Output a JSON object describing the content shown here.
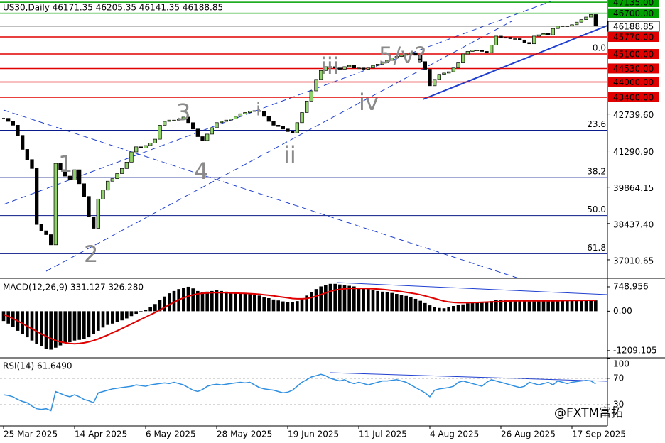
{
  "watermark": "@FXTM富拓",
  "chart_data": [
    {
      "type": "candlestick",
      "title": "US30,Daily  46171.35 46205.35 46141.35 46188.85",
      "close": [
        42570,
        42450,
        42300,
        41900,
        41350,
        40950,
        40600,
        38400,
        38150,
        38000,
        37600,
        40800,
        40550,
        40300,
        40150,
        40550,
        40000,
        39500,
        38700,
        38250,
        39400,
        39750,
        40100,
        40200,
        40400,
        40600,
        40850,
        41250,
        41450,
        41400,
        41500,
        41600,
        41750,
        42300,
        42450,
        42500,
        42500,
        42550,
        42620,
        42400,
        42150,
        41850,
        41700,
        41950,
        42200,
        42400,
        42450,
        42500,
        42550,
        42650,
        42750,
        42800,
        42850,
        42870,
        42850,
        42650,
        42450,
        42300,
        42250,
        42150,
        42050,
        42000,
        42400,
        42800,
        43250,
        43650,
        44100,
        44450,
        44600,
        44600,
        44550,
        44500,
        44600,
        44650,
        44550,
        44550,
        44500,
        44550,
        44650,
        44700,
        44750,
        44850,
        44950,
        45000,
        45050,
        45100,
        45150,
        45050,
        44800,
        44500,
        43850,
        44100,
        44300,
        44350,
        44400,
        44550,
        44750,
        45100,
        45200,
        45250,
        45250,
        45200,
        45150,
        45450,
        45800,
        45750,
        45750,
        45700,
        45700,
        45650,
        45550,
        45500,
        45800,
        45850,
        45900,
        45850,
        46100,
        46200,
        46200,
        46200,
        46250,
        46350,
        46450,
        46550,
        46650,
        46188.85
      ],
      "color_up": "#8fd16a",
      "color_down": "#000000",
      "xlim": [
        -0.75,
        127.5
      ],
      "xticks": [
        {
          "value": 0,
          "label": "25 Mar 2025"
        },
        {
          "value": 15,
          "label": "14 Apr 2025"
        },
        {
          "value": 30,
          "label": "6 May 2025"
        },
        {
          "value": 45,
          "label": "28 May 2025"
        },
        {
          "value": 60,
          "label": "19 Jun 2025"
        },
        {
          "value": 75,
          "label": "11 Jul 2025"
        },
        {
          "value": 90,
          "label": "4 Aug 2025"
        },
        {
          "value": 105,
          "label": "26 Aug 2025"
        },
        {
          "value": 120,
          "label": "17 Sep 2025"
        }
      ],
      "ylim": [
        36284,
        47221
      ],
      "yticks": [
        {
          "value": 42739.6,
          "label": "42739.60"
        },
        {
          "value": 41290.9,
          "label": "41290.90"
        },
        39864.15,
        {
          "value": 38437.4,
          "label": "38437.40"
        },
        37010.65
      ],
      "current": 46188.85,
      "levels": [
        {
          "value": 47135,
          "label": "47135.00",
          "color": "#00a000"
        },
        {
          "value": 46700,
          "label": "46700.00",
          "color": "#00a000"
        },
        {
          "value": 45770,
          "label": "45770.00",
          "color": "#e00000"
        },
        {
          "value": 45100,
          "label": "45100.00",
          "color": "#e00000"
        },
        {
          "value": 44530,
          "label": "44530.00",
          "color": "#e00000"
        },
        {
          "value": 44000,
          "label": "44000.00",
          "color": "#e00000"
        },
        {
          "value": 43400,
          "label": "43400.00",
          "color": "#e00000"
        }
      ],
      "fib": [
        {
          "level": "0.0",
          "price": 45100
        },
        {
          "level": "23.6",
          "price": 42103
        },
        {
          "level": "38.2",
          "price": 40249
        },
        {
          "level": "50.0",
          "price": 38750
        },
        {
          "level": "61.8",
          "price": 37251
        }
      ],
      "annotations": [
        "1",
        "2",
        "3",
        "4",
        "i",
        "ii",
        "iii",
        "iv",
        "5/v?"
      ]
    },
    {
      "type": "macd",
      "title": "MACD(12,26,9) 331.127 326.280",
      "histogram": [
        -300,
        -380,
        -480,
        -600,
        -700,
        -800,
        -900,
        -1000,
        -1080,
        -1150,
        -1180,
        -1120,
        -1050,
        -980,
        -950,
        -900,
        -880,
        -860,
        -800,
        -700,
        -600,
        -500,
        -420,
        -380,
        -330,
        -280,
        -220,
        -150,
        -80,
        -20,
        50,
        120,
        220,
        350,
        450,
        550,
        620,
        680,
        720,
        750,
        700,
        620,
        580,
        600,
        620,
        640,
        620,
        600,
        580,
        560,
        560,
        540,
        520,
        500,
        480,
        440,
        400,
        360,
        330,
        300,
        290,
        280,
        310,
        380,
        480,
        580,
        680,
        760,
        810,
        840,
        840,
        820,
        800,
        780,
        760,
        720,
        700,
        680,
        650,
        620,
        600,
        580,
        560,
        530,
        500,
        470,
        430,
        380,
        320,
        250,
        180,
        130,
        100,
        90,
        120,
        160,
        190,
        210,
        240,
        260,
        270,
        280,
        290,
        310,
        340,
        350,
        350,
        340,
        330,
        320,
        310,
        300,
        300,
        310,
        320,
        320,
        330,
        340,
        350,
        350,
        350,
        350,
        350,
        350,
        340,
        331.127
      ],
      "signal": [
        -100,
        -160,
        -230,
        -300,
        -380,
        -460,
        -540,
        -620,
        -700,
        -770,
        -840,
        -900,
        -940,
        -970,
        -990,
        -1000,
        -990,
        -970,
        -940,
        -900,
        -850,
        -790,
        -730,
        -660,
        -600,
        -530,
        -460,
        -390,
        -320,
        -250,
        -180,
        -110,
        -40,
        40,
        120,
        200,
        280,
        350,
        410,
        460,
        500,
        530,
        550,
        560,
        570,
        570,
        570,
        570,
        560,
        555,
        550,
        545,
        540,
        530,
        520,
        505,
        490,
        470,
        450,
        430,
        410,
        390,
        380,
        380,
        390,
        420,
        460,
        510,
        560,
        610,
        650,
        670,
        690,
        700,
        700,
        700,
        700,
        695,
        690,
        680,
        670,
        655,
        640,
        620,
        600,
        580,
        560,
        535,
        505,
        470,
        430,
        390,
        350,
        310,
        285,
        270,
        260,
        260,
        260,
        265,
        270,
        275,
        280,
        285,
        290,
        300,
        310,
        315,
        320,
        320,
        320,
        320,
        320,
        320,
        320,
        320,
        320,
        320,
        325,
        325,
        330,
        330,
        330,
        335,
        335,
        326.28
      ],
      "hist_color": "#000000",
      "signal_color": "#e00000",
      "ylim": [
        -1430,
        1010
      ],
      "yticks": [
        748.956,
        {
          "value": 0,
          "label": "0.00"
        },
        -1209.105
      ]
    },
    {
      "type": "line",
      "title": "RSI(14) 61.6490",
      "values": [
        45,
        44,
        42,
        38,
        35,
        33,
        28,
        24,
        23,
        24,
        21,
        50,
        47,
        44,
        42,
        45,
        42,
        38,
        36,
        33,
        48,
        50,
        52,
        54,
        55,
        56,
        57,
        58,
        60,
        59,
        58,
        60,
        61,
        62,
        63,
        62,
        64,
        62,
        60,
        56,
        52,
        50,
        53,
        58,
        60,
        61,
        60,
        61,
        62,
        63,
        64,
        63,
        64,
        60,
        56,
        54,
        53,
        52,
        50,
        48,
        49,
        52,
        58,
        64,
        68,
        72,
        74,
        76,
        74,
        70,
        68,
        66,
        68,
        64,
        62,
        64,
        62,
        60,
        62,
        64,
        66,
        66,
        67,
        68,
        66,
        64,
        60,
        56,
        52,
        48,
        42,
        52,
        54,
        55,
        56,
        58,
        64,
        66,
        64,
        62,
        60,
        58,
        64,
        68,
        66,
        64,
        62,
        60,
        58,
        56,
        58,
        64,
        62,
        60,
        62,
        64,
        60,
        66,
        64,
        62,
        64,
        65,
        66,
        67,
        66,
        61.649
      ],
      "color": "#2f8fe0",
      "ylim": [
        0,
        100
      ],
      "yticks": [
        100,
        70,
        30
      ],
      "levels": [
        70,
        30
      ]
    }
  ]
}
